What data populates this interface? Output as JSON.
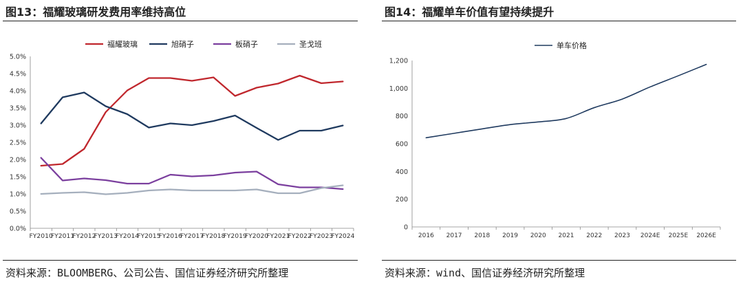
{
  "panels": [
    {
      "title": "图13：福耀玻璃研发费用率维持高位",
      "source": "资料来源：BLOOMBERG、公司公告、国信证券经济研究所整理"
    },
    {
      "title": "图14：福耀单车价值有望持续提升",
      "source": "资料来源：wind、国信证券经济研究所整理"
    }
  ],
  "chart_data": [
    {
      "type": "line",
      "title": "福耀玻璃研发费用率维持高位",
      "xlabel": "",
      "ylabel": "",
      "ylim": [
        0,
        5
      ],
      "yticks": [
        0,
        0.5,
        1,
        1.5,
        2,
        2.5,
        3,
        3.5,
        4,
        4.5,
        5
      ],
      "ytick_labels": [
        "0.0%",
        "0.5%",
        "1.0%",
        "1.5%",
        "2.0%",
        "2.5%",
        "3.0%",
        "3.5%",
        "4.0%",
        "4.5%",
        "5.0%"
      ],
      "categories": [
        "FY2010",
        "FY2011",
        "FY2012",
        "FY2013",
        "FY2014",
        "FY2015",
        "FY2016",
        "FY2017",
        "FY2018",
        "FY2019",
        "FY2020",
        "FY2021",
        "FY2022",
        "FY2023",
        "FY2024"
      ],
      "legend_position": "top",
      "series": [
        {
          "name": "福耀玻璃",
          "color": "#c0272d",
          "values": [
            1.82,
            1.87,
            2.31,
            3.38,
            4.01,
            4.37,
            4.37,
            4.29,
            4.39,
            3.85,
            4.09,
            4.21,
            4.44,
            4.22,
            4.27
          ]
        },
        {
          "name": "旭硝子",
          "color": "#1f3a5f",
          "values": [
            3.05,
            3.81,
            3.95,
            3.55,
            3.32,
            2.93,
            3.05,
            3.0,
            3.12,
            3.28,
            2.92,
            2.57,
            2.84,
            2.84,
            2.99
          ]
        },
        {
          "name": "板硝子",
          "color": "#7b3f9e",
          "values": [
            2.05,
            1.39,
            1.45,
            1.4,
            1.3,
            1.3,
            1.56,
            1.51,
            1.54,
            1.62,
            1.65,
            1.28,
            1.19,
            1.19,
            1.14
          ]
        },
        {
          "name": "圣戈班",
          "color": "#a5afbd",
          "values": [
            1.0,
            1.03,
            1.05,
            0.99,
            1.03,
            1.1,
            1.13,
            1.1,
            1.1,
            1.1,
            1.13,
            1.02,
            1.02,
            1.17,
            1.25
          ]
        }
      ]
    },
    {
      "type": "line",
      "title": "福耀单车价值有望持续提升",
      "xlabel": "",
      "ylabel": "",
      "ylim": [
        0,
        1200
      ],
      "yticks": [
        0,
        200,
        400,
        600,
        800,
        1000,
        1200
      ],
      "ytick_labels": [
        "0",
        "200",
        "400",
        "600",
        "800",
        "1,000",
        "1,200"
      ],
      "categories": [
        "2016",
        "2017",
        "2018",
        "2019",
        "2020",
        "2021",
        "2022",
        "2023",
        "2024E",
        "2025E",
        "2026E"
      ],
      "legend_position": "top",
      "series": [
        {
          "name": "单车价格",
          "color": "#1f3a5f",
          "values": [
            643,
            675,
            707,
            738,
            757,
            782,
            860,
            922,
            1010,
            1090,
            1172
          ]
        }
      ]
    }
  ]
}
